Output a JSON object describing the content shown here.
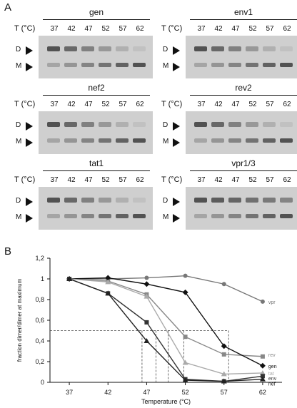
{
  "panel_a_label": "A",
  "panel_b_label": "B",
  "gel": {
    "temp_axis_label": "T (°C)",
    "temperatures": [
      "37",
      "42",
      "47",
      "52",
      "57",
      "62"
    ],
    "dimer_marker": "D",
    "monomer_marker": "M",
    "panels": [
      {
        "name": "gen"
      },
      {
        "name": "env1"
      },
      {
        "name": "nef2"
      },
      {
        "name": "rev2"
      },
      {
        "name": "tat1"
      },
      {
        "name": "vpr1/3"
      }
    ]
  },
  "chart_data": {
    "type": "line",
    "xlabel": "Temperature (°C)",
    "ylabel": "fraction dimer/dimer at maximum",
    "x": [
      37,
      42,
      47,
      52,
      57,
      62
    ],
    "xticks": [
      "37",
      "42",
      "47",
      "52",
      "57",
      "62"
    ],
    "yticks": [
      "0",
      "0,2",
      "0,4",
      "0,6",
      "0,8",
      "1",
      "1,2"
    ],
    "xlim": [
      34.5,
      64.5
    ],
    "ylim": [
      0,
      1.2
    ],
    "grid": false,
    "series": [
      {
        "name": "vpr",
        "color": "#777777",
        "marker": "circle",
        "x": [
          37,
          42,
          47,
          52,
          57,
          62
        ],
        "values": [
          1.0,
          1.0,
          1.01,
          1.03,
          0.95,
          0.78
        ]
      },
      {
        "name": "rev",
        "color": "#888888",
        "marker": "square",
        "x": [
          37,
          42,
          47,
          52,
          57,
          62
        ],
        "values": [
          1.0,
          0.98,
          0.85,
          0.44,
          0.27,
          0.25
        ]
      },
      {
        "name": "gen",
        "color": "#111111",
        "marker": "diamond",
        "x": [
          37,
          42,
          47,
          52,
          57,
          62
        ],
        "values": [
          1.0,
          1.01,
          0.95,
          0.87,
          0.35,
          0.16
        ]
      },
      {
        "name": "tat",
        "color": "#aaaaaa",
        "marker": "triangle",
        "x": [
          37,
          42,
          47,
          52,
          57,
          62
        ],
        "values": [
          1.0,
          0.97,
          0.83,
          0.19,
          0.08,
          0.09
        ]
      },
      {
        "name": "env",
        "color": "#333333",
        "marker": "square",
        "x": [
          37,
          42,
          47,
          52,
          57,
          62
        ],
        "values": [
          1.0,
          0.86,
          0.58,
          0.03,
          0.01,
          0.06
        ]
      },
      {
        "name": "nef",
        "color": "#222222",
        "marker": "triangle",
        "x": [
          37,
          42,
          47,
          52,
          57,
          62
        ],
        "values": [
          1.0,
          0.86,
          0.4,
          0.02,
          0.01,
          0.03
        ]
      }
    ],
    "threshold": 0.5,
    "half_points_x": [
      46.4,
      48.2,
      49.8,
      51.8,
      57.6
    ]
  }
}
